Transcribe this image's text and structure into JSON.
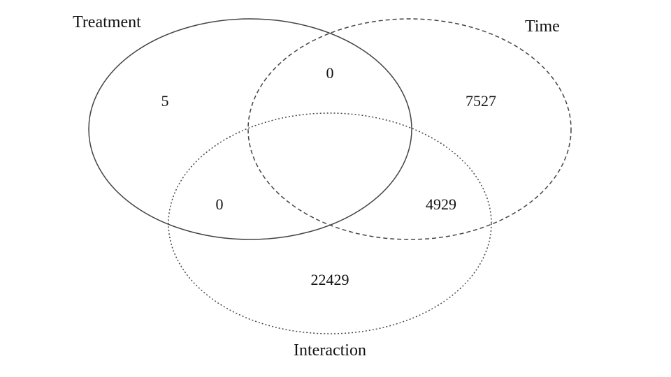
{
  "diagram": {
    "type": "venn-3",
    "sets": {
      "treatment": {
        "label": "Treatment",
        "line_style": "solid",
        "color": "#444444"
      },
      "time": {
        "label": "Time",
        "line_style": "dashed",
        "color": "#444444"
      },
      "interaction": {
        "label": "Interaction",
        "line_style": "dotted",
        "color": "#444444"
      }
    },
    "regions": {
      "treatment_only": "5",
      "treatment_time": "0",
      "time_only": "7527",
      "treatment_interaction": "0",
      "time_interaction": "4929",
      "interaction_only": "22429"
    }
  }
}
